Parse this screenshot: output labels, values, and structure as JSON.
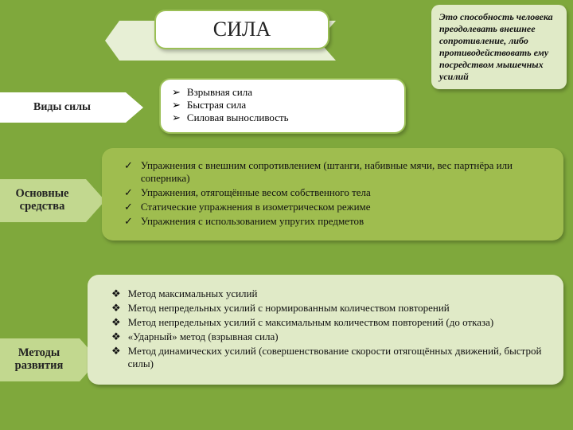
{
  "colors": {
    "page_bg": "#7fa83c",
    "ribbon_bg": "#e7efd5",
    "title_bg": "#ffffff",
    "title_border": "#9abf55",
    "def_bg": "#e0eac7",
    "types_label_bg": "#ffffff",
    "means_label_bg": "#c2d88f",
    "methods_label_bg": "#c2d88f",
    "means_panel_bg": "#9fbd4f",
    "methods_panel_bg": "#e0eac7",
    "text": "#111111"
  },
  "typography": {
    "title_fontsize_pt": 20,
    "body_fontsize_pt": 10,
    "def_fontsize_pt": 9,
    "label_fontsize_pt": 11,
    "font_family": "Georgia / Times New Roman"
  },
  "bullets": {
    "arrow": "➢",
    "check": "✓",
    "diamond": "❖"
  },
  "title": "СИЛА",
  "definition": "Это способность человека преодолевать внешнее сопротивление, либо противодействовать ему посредством мышечных усилий",
  "types": {
    "label": "Виды силы",
    "items": [
      "Взрывная сила",
      "Быстрая сила",
      "Силовая выносливость"
    ]
  },
  "means": {
    "label": "Основные средства",
    "items": [
      "Упражнения с внешним сопротивлением (штанги, набивные мячи, вес партнёра или соперника)",
      "Упражнения, отягощённые весом собственного тела",
      "Статические упражнения в изометрическом режиме",
      "Упражнения с использованием упругих предметов"
    ]
  },
  "methods": {
    "label": "Методы развития",
    "items": [
      "Метод максимальных усилий",
      "Метод непредельных усилий с нормированным количеством повторений",
      "Метод непредельных усилий с максимальным количеством повторений (до отказа)",
      "«Ударный» метод (взрывная сила)",
      "Метод динамических усилий (совершенствование скорости отягощённых движений, быстрой силы)"
    ]
  }
}
